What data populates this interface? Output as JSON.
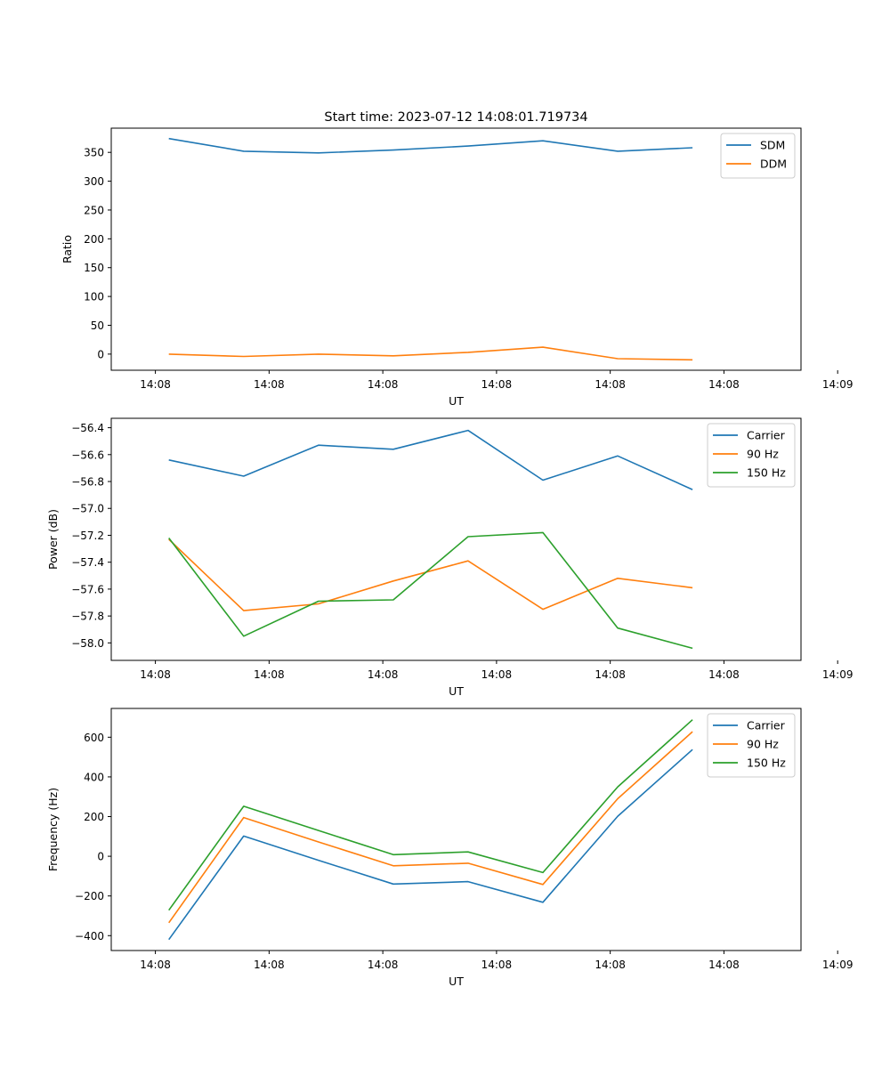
{
  "figure_title": "Start time: 2023-07-12 14:08:01.719734",
  "chart_data": [
    {
      "type": "line",
      "xlabel": "UT",
      "ylabel": "Ratio",
      "x_tick_labels": [
        "14:08",
        "14:08",
        "14:08",
        "14:08",
        "14:08",
        "14:08",
        "14:09"
      ],
      "x_points": [
        0,
        1,
        2,
        3,
        4,
        5,
        6,
        7
      ],
      "ylim": [
        -28,
        392
      ],
      "yticks": [
        0,
        50,
        100,
        150,
        200,
        250,
        300,
        350
      ],
      "legend_position": "top-right",
      "series": [
        {
          "name": "SDM",
          "color": "#1f77b4",
          "values": [
            374,
            352,
            349,
            354,
            361,
            370,
            352,
            358
          ]
        },
        {
          "name": "DDM",
          "color": "#ff7f0e",
          "values": [
            0,
            -4,
            0,
            -3,
            3,
            12,
            -8,
            -10
          ]
        }
      ]
    },
    {
      "type": "line",
      "xlabel": "UT",
      "ylabel": "Power (dB)",
      "x_tick_labels": [
        "14:08",
        "14:08",
        "14:08",
        "14:08",
        "14:08",
        "14:08",
        "14:09"
      ],
      "x_points": [
        0,
        1,
        2,
        3,
        4,
        5,
        6,
        7
      ],
      "ylim": [
        -58.13,
        -56.33
      ],
      "yticks": [
        -58.0,
        -57.8,
        -57.6,
        -57.4,
        -57.2,
        -57.0,
        -56.8,
        -56.6,
        -56.4
      ],
      "legend_position": "top-right",
      "series": [
        {
          "name": "Carrier",
          "color": "#1f77b4",
          "values": [
            -56.64,
            -56.76,
            -56.53,
            -56.56,
            -56.42,
            -56.79,
            -56.61,
            -56.86
          ]
        },
        {
          "name": "90 Hz",
          "color": "#ff7f0e",
          "values": [
            -57.23,
            -57.76,
            -57.71,
            -57.54,
            -57.39,
            -57.75,
            -57.52,
            -57.59
          ]
        },
        {
          "name": "150 Hz",
          "color": "#2ca02c",
          "values": [
            -57.22,
            -57.95,
            -57.69,
            -57.68,
            -57.21,
            -57.18,
            -57.89,
            -58.04
          ]
        }
      ]
    },
    {
      "type": "line",
      "xlabel": "UT",
      "ylabel": "Frequency (Hz)",
      "x_tick_labels": [
        "14:08",
        "14:08",
        "14:08",
        "14:08",
        "14:08",
        "14:08",
        "14:09"
      ],
      "x_points": [
        0,
        1,
        2,
        3,
        4,
        5,
        6,
        7
      ],
      "ylim": [
        -475,
        745
      ],
      "yticks": [
        -400,
        -200,
        0,
        200,
        400,
        600
      ],
      "legend_position": "top-right",
      "series": [
        {
          "name": "Carrier",
          "color": "#1f77b4",
          "values": [
            -420,
            102,
            -20,
            -140,
            -128,
            -232,
            202,
            538
          ]
        },
        {
          "name": "90 Hz",
          "color": "#ff7f0e",
          "values": [
            -335,
            195,
            72,
            -48,
            -35,
            -142,
            290,
            628
          ]
        },
        {
          "name": "150 Hz",
          "color": "#2ca02c",
          "values": [
            -272,
            252,
            130,
            8,
            22,
            -82,
            350,
            688
          ]
        }
      ]
    }
  ]
}
